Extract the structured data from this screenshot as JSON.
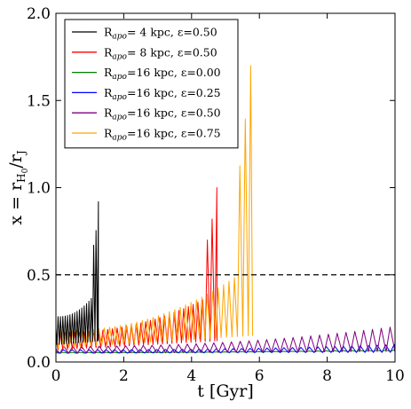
{
  "chart_data": {
    "type": "line",
    "xlabel": "t [Gyr]",
    "ylabel": "x = r",
    "ylabel_sub1": "H",
    "ylabel_sub2": "0",
    "ylabel_mid": "/r",
    "ylabel_sub3": "J",
    "xlim": [
      0,
      10
    ],
    "ylim": [
      0,
      2
    ],
    "x_ticks": [
      0,
      2,
      4,
      6,
      8,
      10
    ],
    "x_tick_labels": [
      "0",
      "2",
      "4",
      "6",
      "8",
      "10"
    ],
    "y_ticks": [
      0.0,
      0.5,
      1.0,
      1.5,
      2.0
    ],
    "y_tick_labels": [
      "0.0",
      "0.5",
      "1.0",
      "1.5",
      "2.0"
    ],
    "reference_line": {
      "y": 0.5,
      "style": "dashed",
      "color": "#000000"
    },
    "legend_position": "upper-left",
    "series": [
      {
        "name_pre": "R",
        "name_sub": "apo",
        "name_post": "= 4 kpc, ε=0.50",
        "color": "#000000",
        "t_end": 1.25,
        "period": 0.07,
        "base_start": 0.1,
        "base_end": 0.12,
        "peak_start": 0.26,
        "peak_end": 0.42,
        "final_peak": 0.92
      },
      {
        "name_pre": "R",
        "name_sub": "apo",
        "name_post": "= 8 kpc, ε=0.50",
        "color": "#ff0000",
        "t_end": 4.75,
        "period": 0.14,
        "base_start": 0.07,
        "base_end": 0.12,
        "peak_start": 0.17,
        "peak_end": 0.4,
        "final_peak": 1.0
      },
      {
        "name_pre": "R",
        "name_sub": "apo",
        "name_post": "=16 kpc, ε=0.00",
        "color": "#008000",
        "t_end": 10.0,
        "period": 0.25,
        "base_start": 0.05,
        "base_end": 0.06,
        "peak_start": 0.055,
        "peak_end": 0.07,
        "final_peak": 0.07
      },
      {
        "name_pre": "R",
        "name_sub": "apo",
        "name_post": "=16 kpc, ε=0.25",
        "color": "#0000ff",
        "t_end": 10.0,
        "period": 0.25,
        "base_start": 0.05,
        "base_end": 0.055,
        "peak_start": 0.07,
        "peak_end": 0.1,
        "final_peak": 0.1
      },
      {
        "name_pre": "R",
        "name_sub": "apo",
        "name_post": "=16 kpc, ε=0.50",
        "color": "#800080",
        "t_end": 10.0,
        "period": 0.26,
        "base_start": 0.05,
        "base_end": 0.06,
        "peak_start": 0.09,
        "peak_end": 0.2,
        "final_peak": 0.2
      },
      {
        "name_pre": "R",
        "name_sub": "apo",
        "name_post": "=16 kpc, ε=0.75",
        "color": "#ffa500",
        "t_end": 5.8,
        "period": 0.16,
        "base_start": 0.08,
        "base_end": 0.15,
        "peak_start": 0.18,
        "peak_end": 0.55,
        "final_peak": 1.7
      }
    ]
  }
}
